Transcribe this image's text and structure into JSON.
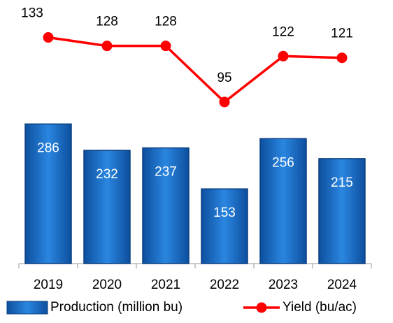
{
  "chart_data": {
    "type": "bar",
    "categories": [
      "2019",
      "2020",
      "2021",
      "2022",
      "2023",
      "2024"
    ],
    "series": [
      {
        "name": "Production (million bu)",
        "type": "bar",
        "color": "#1f6fc5",
        "values": [
          286,
          232,
          237,
          153,
          256,
          215
        ]
      },
      {
        "name": "Yield (bu/ac)",
        "type": "line",
        "axis": "y2",
        "color": "#ff0000",
        "values": [
          133,
          128,
          128,
          95,
          122,
          121
        ]
      }
    ],
    "ylim": [
      0,
      540
    ],
    "y2lim": [
      0,
      155
    ],
    "grid": false,
    "legend": "bottom"
  }
}
